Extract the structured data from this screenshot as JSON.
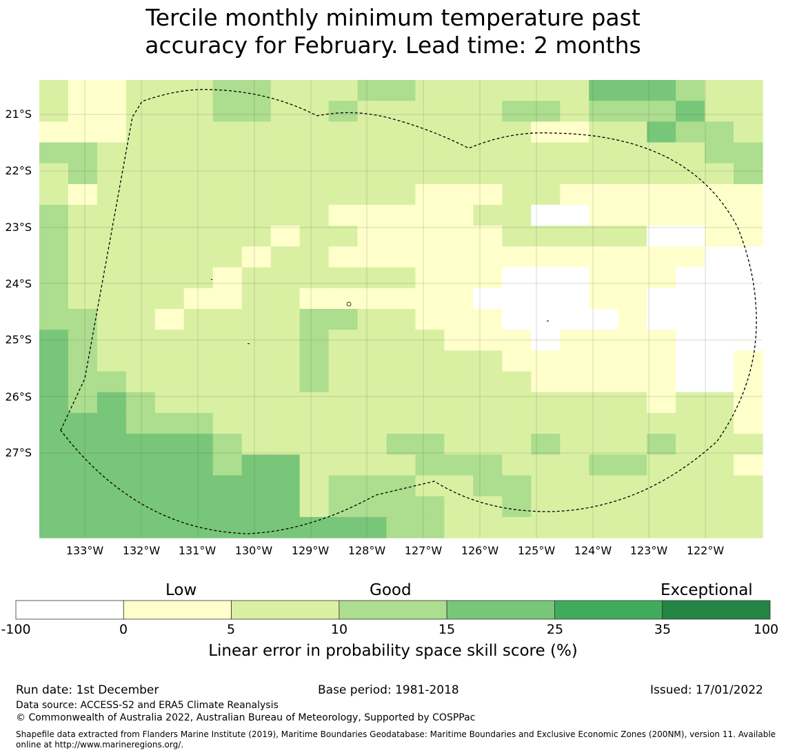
{
  "title_line1": "Tercile monthly minimum temperature past",
  "title_line2": "accuracy for February. Lead time: 2 months",
  "map": {
    "lat_labels": [
      "21°S",
      "22°S",
      "23°S",
      "24°S",
      "25°S",
      "26°S",
      "27°S"
    ],
    "lon_labels": [
      "133°W",
      "132°W",
      "131°W",
      "130°W",
      "129°W",
      "128°W",
      "127°W",
      "126°W",
      "125°W",
      "124°W",
      "123°W",
      "122°W"
    ],
    "palette": [
      "#ffffff",
      "#ffffcc",
      "#d9f0a3",
      "#addd8e",
      "#78c679",
      "#41ab5d",
      "#238443"
    ],
    "grid_rows": [
      "2112223322233222222444322",
      "2112223322322222332333422",
      "1112222222222222211224332",
      "3322222222222222222222233",
      "2322222222222222222222223",
      "2122222222222111221111111",
      "3222222222111112200111111",
      "3222222212211111222220011",
      "3222222122111111111111100",
      "3222221222222111000111000",
      "3222211221111110000110000",
      "3322122223322111000010000",
      "4322222223222211101111000",
      "4322222223222222111111001",
      "4332222223222222211111001",
      "4343222222222222222221221",
      "4443332222222222222222221",
      "4444443222223322232223222",
      "4444443442222333222332221",
      "4444444442333223322222222",
      "4444444442333322322222222",
      "4444444444443322222222222"
    ]
  },
  "colorbar": {
    "category_labels": [
      "Low",
      "Good",
      "Exceptional"
    ],
    "ticks": [
      "-100",
      "0",
      "5",
      "10",
      "15",
      "25",
      "35",
      "100"
    ],
    "title": "Linear error in probability space skill score (%)"
  },
  "footer": {
    "run_date": "Run date: 1st December",
    "base_period": "Base period: 1981-2018",
    "issued": "Issued: 17/01/2022",
    "data_source": "Data source: ACCESS-S2 and ERA5 Climate Reanalysis",
    "copyright": "© Commonwealth of Australia 2022, Australian Bureau of Meteorology, Supported by COSPPac",
    "shapefile_line1": "Shapefile data extracted from Flanders Marine Institute (2019), Maritime Boundaries Geodatabase: Maritime Boundaries and Exclusive Economic Zones (200NM), version 11. Available",
    "shapefile_line2": "online at http://www.marineregions.org/."
  }
}
